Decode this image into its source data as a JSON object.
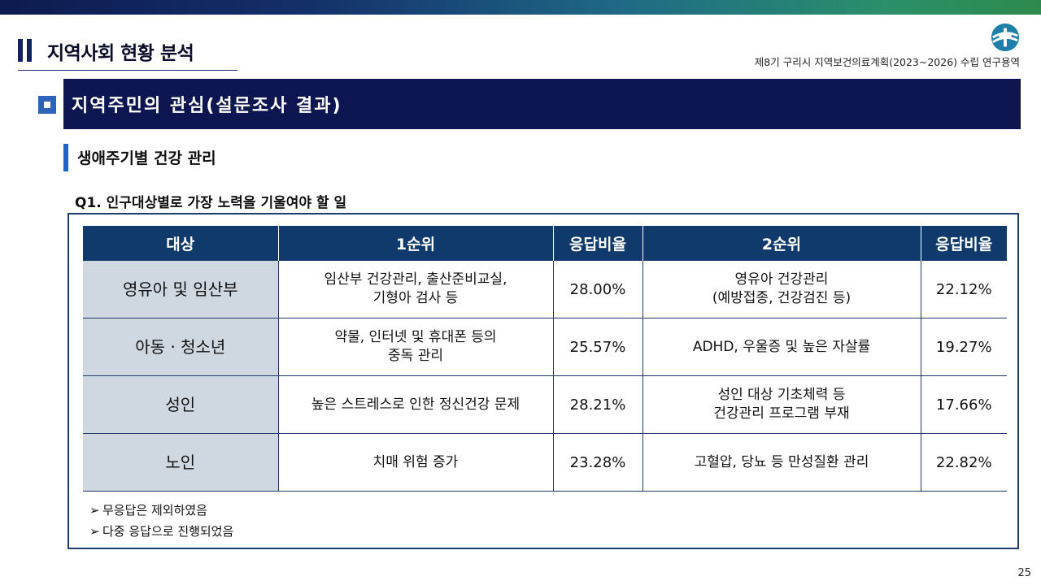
{
  "header": {
    "page_title": "지역사회 현황 분석",
    "doc_subtitle": "제8기 구리시 지역보건의료계획(2023~2026) 수립 연구용역"
  },
  "section": {
    "banner": "지역주민의 관심(설문조사 결과)",
    "sub_heading": "생애주기별 건강 관리",
    "question": "Q1. 인구대상별로 가장 노력을 기울여야 할 일"
  },
  "table": {
    "headers": [
      "대상",
      "1순위",
      "응답비율",
      "2순위",
      "응답비율"
    ],
    "rows": [
      {
        "target": "영유아 및 임산부",
        "first": "임산부 건강관리, 출산준비교실,\n기형아 검사 등",
        "first_pct": "28.00%",
        "second": "영유아 건강관리\n(예방접종, 건강검진 등)",
        "second_pct": "22.12%"
      },
      {
        "target": "아동 · 청소년",
        "first": "약물, 인터넷 및 휴대폰 등의\n중독 관리",
        "first_pct": "25.57%",
        "second": "ADHD, 우울증 및 높은 자살률",
        "second_pct": "19.27%"
      },
      {
        "target": "성인",
        "first": "높은 스트레스로 인한 정신건강 문제",
        "first_pct": "28.21%",
        "second": "성인 대상 기초체력 등\n건강관리 프로그램 부재",
        "second_pct": "17.66%"
      },
      {
        "target": "노인",
        "first": "치매 위험 증가",
        "first_pct": "23.28%",
        "second": "고혈압, 당뇨 등 만성질환 관리",
        "second_pct": "22.82%"
      }
    ]
  },
  "notes": [
    "무응답은 제외하였음",
    "다중 응답으로 진행되었음"
  ],
  "page_number": "25",
  "colors": {
    "banner": "#0d1650",
    "table_header": "#0f3a6b",
    "target_cell": "#cfd7e0",
    "accent_blue": "#1e64c8"
  }
}
